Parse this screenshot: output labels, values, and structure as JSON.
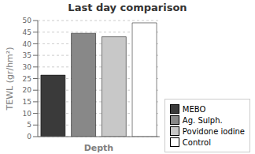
{
  "chart_data": {
    "type": "bar",
    "title": "Last day comparison",
    "xlabel": "Depth",
    "ylabel": "TEWL (gr/hm²)",
    "categories": [
      "MEBO",
      "Ag. Sulph.",
      "Povidone iodine",
      "Control"
    ],
    "values": [
      26.5,
      44.5,
      43.0,
      49.0
    ],
    "colors": [
      "#3a3a3a",
      "#888888",
      "#c8c8c8",
      "#ffffff"
    ],
    "ylim": [
      0,
      50
    ],
    "yticks": [
      0,
      5,
      10,
      15,
      20,
      25,
      30,
      35,
      40,
      45,
      50
    ],
    "grid": true,
    "legend": "lower right",
    "tick_labels": "y"
  }
}
